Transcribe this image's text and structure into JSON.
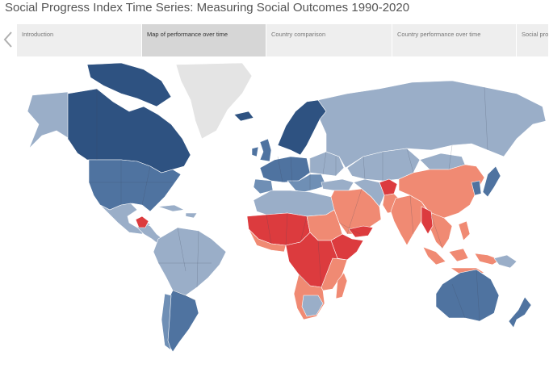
{
  "header": {
    "title": "Social Progress Index Time Series: Measuring Social Outcomes 1990-2020"
  },
  "tabs": [
    {
      "label": "Introduction",
      "active": false
    },
    {
      "label": "Map of performance over time",
      "active": true
    },
    {
      "label": "Country comparison",
      "active": false
    },
    {
      "label": "Country performance over time",
      "active": false
    },
    {
      "label": "Social prog",
      "active": false
    }
  ],
  "map": {
    "colors": {
      "very_high": "#2e5281",
      "high": "#4f73a0",
      "upper_middle": "#6f8fb5",
      "middle": "#9aaec8",
      "lower_middle": "#f08a73",
      "low": "#dc3b3e",
      "no_data": "#e4e4e4",
      "background": "#ffffff"
    }
  }
}
